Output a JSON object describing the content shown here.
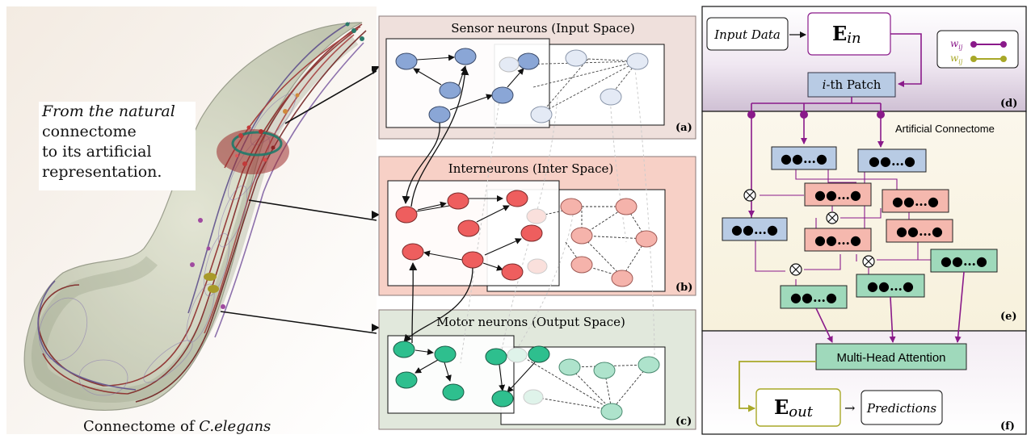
{
  "left": {
    "caption_line1": "From the natural",
    "caption_line2": "connectome",
    "caption_line3": "to its artificial",
    "caption_line4": "representation.",
    "worm_title_prefix": "Connectome of",
    "worm_title_species": "C.elegans"
  },
  "panels": {
    "a": {
      "title": "Sensor neurons (Input Space)",
      "label": "(a)"
    },
    "b": {
      "title": "Interneurons (Inter Space)",
      "label": "(b)"
    },
    "c": {
      "title": "Motor neurons (Output Space)",
      "label": "(c)"
    }
  },
  "right": {
    "input_data": "Input Data",
    "e_in_main": "E",
    "e_in_sub": "in",
    "legend_w": "w",
    "legend_ij": "ij",
    "patch_prefix": "i",
    "patch_suffix": "-th Patch",
    "label_d": "(d)",
    "artificial_connectome": "Artificial Connectome",
    "block_dots": "●●…●",
    "label_e": "(e)",
    "mha": "Multi-Head Attention",
    "e_out_main": "E",
    "e_out_sub": "out",
    "predictions": "Predictions",
    "label_f": "(f)",
    "arrow": "→"
  },
  "colors": {
    "sensor": "#8aa6d6",
    "inter": "#ee5e5e",
    "motor": "#2ebf8e",
    "purple": "#8a1a8a",
    "olive": "#b5b52a",
    "block_blue": "#b8cbe4",
    "block_pink": "#f5b8ae",
    "block_green": "#9fd9bb"
  }
}
